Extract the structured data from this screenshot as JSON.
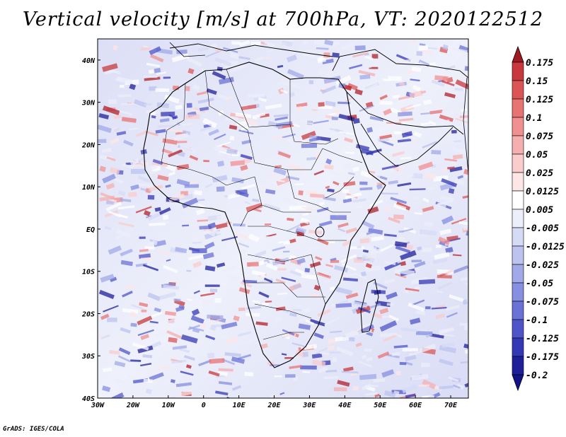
{
  "title": "Vertical velocity [m/s] at 700hPa, VT: 2020122512",
  "credit": "GrADS: IGES/COLA",
  "map": {
    "lon_range": [
      -30,
      75
    ],
    "lat_range": [
      -40,
      45
    ],
    "x_ticks": [
      {
        "value": -30,
        "label": "30W"
      },
      {
        "value": -20,
        "label": "20W"
      },
      {
        "value": -10,
        "label": "10W"
      },
      {
        "value": 0,
        "label": "0"
      },
      {
        "value": 10,
        "label": "10E"
      },
      {
        "value": 20,
        "label": "20E"
      },
      {
        "value": 30,
        "label": "30E"
      },
      {
        "value": 40,
        "label": "40E"
      },
      {
        "value": 50,
        "label": "50E"
      },
      {
        "value": 60,
        "label": "60E"
      },
      {
        "value": 70,
        "label": "70E"
      }
    ],
    "y_ticks": [
      {
        "value": 40,
        "label": "40N"
      },
      {
        "value": 30,
        "label": "30N"
      },
      {
        "value": 20,
        "label": "20N"
      },
      {
        "value": 10,
        "label": "10N"
      },
      {
        "value": 0,
        "label": "EQ"
      },
      {
        "value": -10,
        "label": "10S"
      },
      {
        "value": -20,
        "label": "20S"
      },
      {
        "value": -30,
        "label": "30S"
      },
      {
        "value": -40,
        "label": "40S"
      }
    ]
  },
  "colorbar": {
    "levels": [
      {
        "label": "0.175",
        "color": "#b0202a"
      },
      {
        "label": "0.15",
        "color": "#c8383c"
      },
      {
        "label": "0.125",
        "color": "#dc5555"
      },
      {
        "label": "0.1",
        "color": "#e87373"
      },
      {
        "label": "0.075",
        "color": "#f09090"
      },
      {
        "label": "0.05",
        "color": "#f6afaf"
      },
      {
        "label": "0.025",
        "color": "#facccc"
      },
      {
        "label": "0.0125",
        "color": "#fde6e6"
      },
      {
        "label": "0.005",
        "color": "#ffffff"
      },
      {
        "label": "-0.005",
        "color": "#eceef9"
      },
      {
        "label": "-0.0125",
        "color": "#d6dbf5"
      },
      {
        "label": "-0.025",
        "color": "#bcc3ef"
      },
      {
        "label": "-0.05",
        "color": "#a2a9e8"
      },
      {
        "label": "-0.075",
        "color": "#868fe0"
      },
      {
        "label": "-0.1",
        "color": "#6b72d6"
      },
      {
        "label": "-0.125",
        "color": "#4f55c8"
      },
      {
        "label": "-0.175",
        "color": "#3538b4"
      },
      {
        "label": "-0.2",
        "color": "#1f1f9a"
      }
    ],
    "top_arrow_color": "#a01820",
    "bottom_arrow_color": "#14148a"
  }
}
